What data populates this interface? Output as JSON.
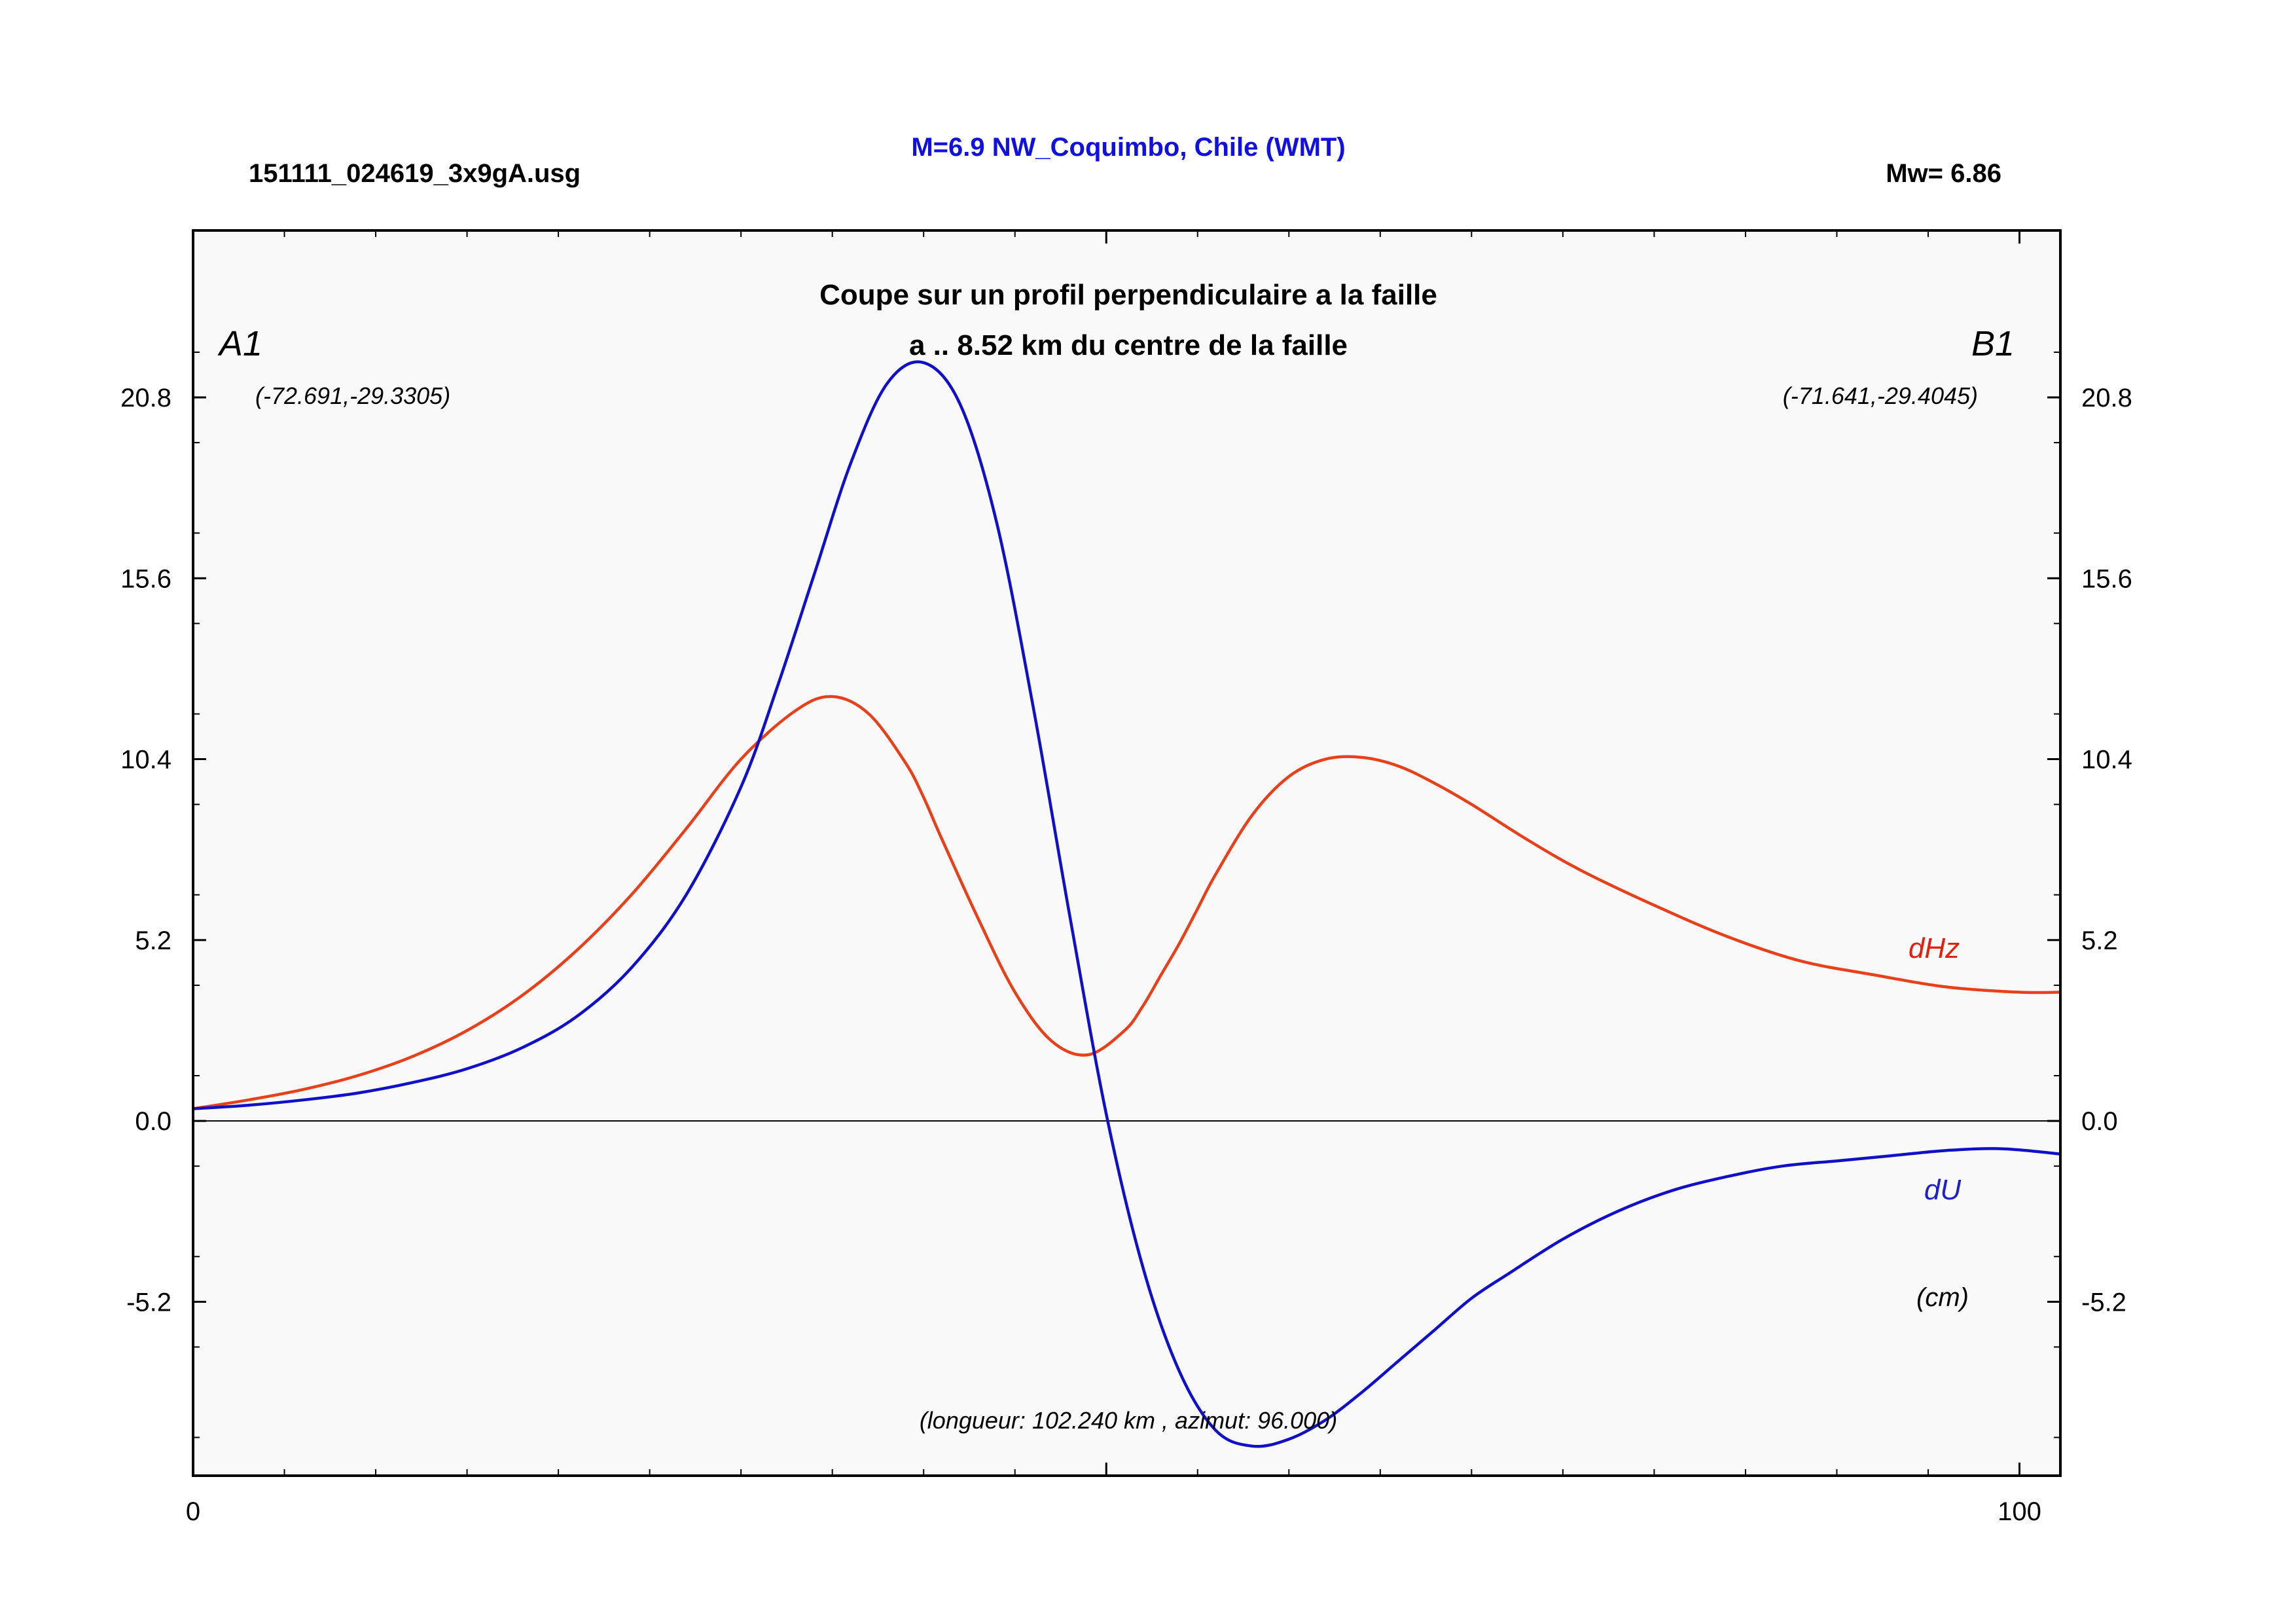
{
  "header": {
    "file_name": "151111_024619_3x9gA.usg",
    "event_title": "M=6.9 NW_Coquimbo, Chile (WMT)",
    "magnitude": "Mw= 6.86"
  },
  "plot": {
    "title_line1": "Coupe sur un profil perpendiculaire a la faille",
    "title_line2": "a .. 8.52 km du centre de la faille",
    "start_label": "A1",
    "end_label": "B1",
    "start_coords": "(-72.691,-29.3305)",
    "end_coords": "(-71.641,-29.4045)",
    "footer_note": "(longueur: 102.240 km , azimut: 96.000)",
    "unit_label": "(cm)",
    "colors": {
      "background": "#f9f9f9",
      "dHz": "#e8401a",
      "dU": "#1010c8",
      "title": "#1010e0",
      "dHz_label": "#e02010",
      "dU_label": "#2020c8"
    }
  },
  "chart_data": {
    "type": "line",
    "xlim": [
      0,
      102.24
    ],
    "ylim": [
      -10.2,
      25.6
    ],
    "x_ticks": [
      "0",
      "100"
    ],
    "y_ticks": [
      "20.8",
      "15.6",
      "10.4",
      "5.2",
      "0.0",
      "-5.2"
    ],
    "grid": false,
    "series": [
      {
        "name": "dHz",
        "x": [
          0,
          3,
          6,
          9,
          12,
          15,
          18,
          21,
          24,
          27,
          30,
          33,
          35,
          37,
          39,
          40,
          41,
          43,
          45,
          47,
          49,
          51,
          52,
          53,
          54,
          55,
          56,
          58,
          60,
          62,
          64,
          66,
          68,
          70,
          73,
          76,
          80,
          84,
          88,
          92,
          96,
          100,
          102.24
        ],
        "y": [
          0.35,
          0.6,
          0.9,
          1.3,
          1.85,
          2.6,
          3.6,
          4.9,
          6.5,
          8.4,
          10.4,
          11.8,
          12.2,
          11.7,
          10.3,
          9.3,
          8.1,
          5.8,
          3.7,
          2.3,
          1.9,
          2.6,
          3.3,
          4.2,
          5.1,
          6.1,
          7.1,
          8.8,
          9.9,
          10.4,
          10.45,
          10.2,
          9.7,
          9.1,
          8.1,
          7.2,
          6.2,
          5.3,
          4.6,
          4.2,
          3.85,
          3.7,
          3.7
        ]
      },
      {
        "name": "dU",
        "x": [
          0,
          3,
          6,
          9,
          12,
          15,
          18,
          21,
          24,
          27,
          30,
          32,
          34,
          36,
          38,
          40,
          42,
          44,
          46,
          48,
          50,
          52,
          54,
          56,
          58,
          60,
          62,
          64,
          66,
          68,
          70,
          72,
          75,
          78,
          81,
          84,
          87,
          90,
          93,
          96,
          99,
          102.24
        ],
        "y": [
          0.35,
          0.45,
          0.6,
          0.8,
          1.1,
          1.5,
          2.1,
          3.0,
          4.4,
          6.5,
          9.6,
          12.5,
          15.7,
          18.9,
          21.2,
          21.8,
          20.6,
          17.2,
          11.9,
          5.9,
          0.2,
          -4.2,
          -7.2,
          -8.9,
          -9.35,
          -9.15,
          -8.6,
          -7.8,
          -6.9,
          -6.0,
          -5.1,
          -4.4,
          -3.4,
          -2.6,
          -2.0,
          -1.6,
          -1.3,
          -1.15,
          -1.0,
          -0.85,
          -0.8,
          -0.95
        ]
      }
    ]
  }
}
